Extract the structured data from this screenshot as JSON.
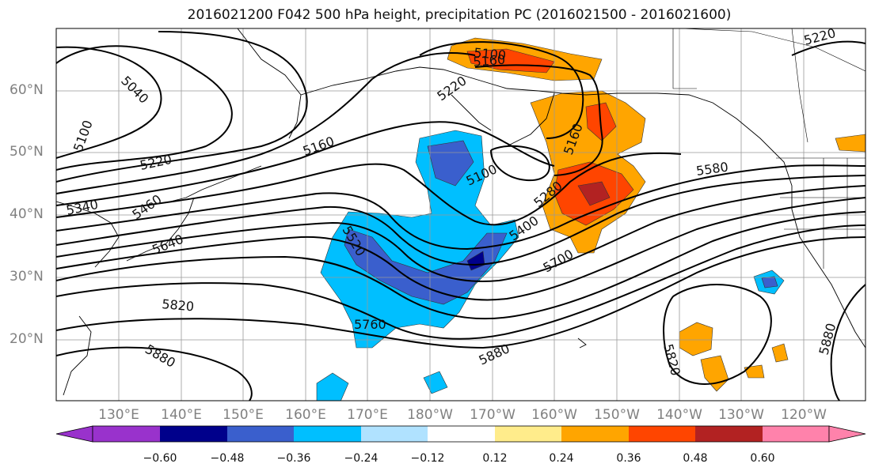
{
  "title": "2016021200 F042 500 hPa height, precipitation PC (2016021500 - 2016021600)",
  "lat_labels": [
    "60°N",
    "50°N",
    "40°N",
    "30°N",
    "20°N"
  ],
  "lon_labels": [
    "130°E",
    "140°E",
    "150°E",
    "160°E",
    "170°E",
    "180°W",
    "170°W",
    "160°W",
    "150°W",
    "140°W",
    "130°W",
    "120°W"
  ],
  "colorbar": {
    "ticks": [
      "−0.60",
      "−0.48",
      "−0.36",
      "−0.24",
      "−0.12",
      "0.12",
      "0.24",
      "0.36",
      "0.48",
      "0.60"
    ],
    "colors": [
      "#9932cc",
      "#00008b",
      "#3a5fcd",
      "#00bfff",
      "#b0e2ff",
      "#ffffff",
      "#ffec8b",
      "#ffa500",
      "#ff4500",
      "#b22222",
      "#ff82ab"
    ]
  },
  "contour_labels": [
    "5040",
    "5100",
    "5220",
    "5340",
    "5460",
    "5640",
    "5820",
    "5880",
    "5160",
    "5100",
    "5220",
    "5160",
    "5100",
    "5520",
    "5760",
    "5880",
    "5400",
    "5280",
    "5160",
    "5580",
    "5700",
    "5820",
    "5880",
    "5220"
  ]
}
